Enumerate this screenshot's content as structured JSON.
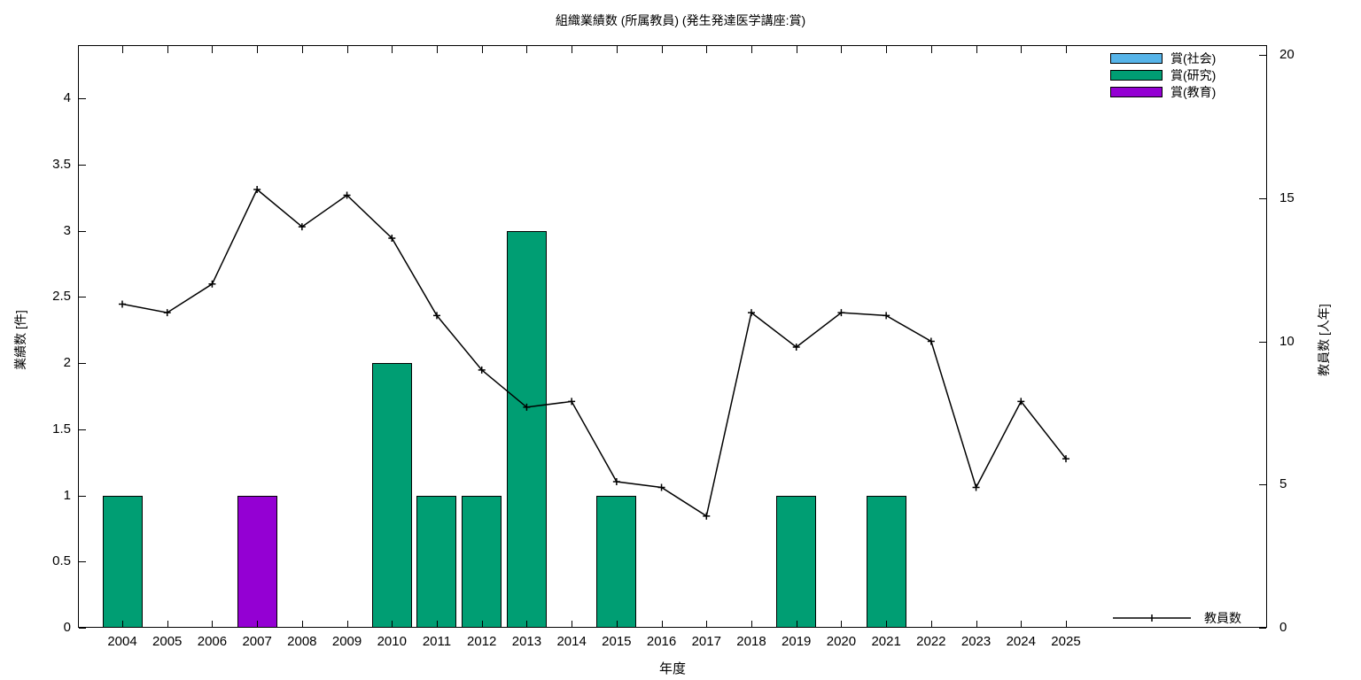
{
  "title": "組織業績数 (所属教員) (発生発達医学講座:賞)",
  "axes": {
    "x": {
      "label": "年度",
      "categories": [
        "2004",
        "2005",
        "2006",
        "2007",
        "2008",
        "2009",
        "2010",
        "2011",
        "2012",
        "2013",
        "2014",
        "2015",
        "2016",
        "2017",
        "2018",
        "2019",
        "2020",
        "2021",
        "2022",
        "2023",
        "2024",
        "2025"
      ]
    },
    "left": {
      "label": "業績数 [件]",
      "tick_labels": [
        "0",
        "0.5",
        "1",
        "1.5",
        "2",
        "2.5",
        "3",
        "3.5",
        "4"
      ],
      "tick_values": [
        0,
        0.5,
        1,
        1.5,
        2,
        2.5,
        3,
        3.5,
        4
      ],
      "range": [
        0,
        4.4
      ]
    },
    "right": {
      "label": "教員数 [人年]",
      "tick_labels": [
        "0",
        "5",
        "10",
        "15",
        "20"
      ],
      "tick_values": [
        0,
        5,
        10,
        15,
        20
      ],
      "range": [
        0,
        20.3
      ]
    }
  },
  "legend": [
    {
      "label": "賞(社会)",
      "color": "#56B4E9"
    },
    {
      "label": "賞(研究)",
      "color": "#009E73"
    },
    {
      "label": "賞(教育)",
      "color": "#9400D3"
    }
  ],
  "line_legend": {
    "label": "教員数",
    "color": "#000000"
  },
  "chart_data": {
    "type": "bar+line",
    "title": "組織業績数 (所属教員) (発生発達医学講座:賞)",
    "xlabel": "年度",
    "ylabel_left": "業績数 [件]",
    "ylabel_right": "教員数 [人年]",
    "ylim_left": [
      0,
      4.4
    ],
    "ylim_right": [
      0,
      20.3
    ],
    "grid": false,
    "legend_position": "top-right",
    "categories": [
      "2004",
      "2005",
      "2006",
      "2007",
      "2008",
      "2009",
      "2010",
      "2011",
      "2012",
      "2013",
      "2014",
      "2015",
      "2016",
      "2017",
      "2018",
      "2019",
      "2020",
      "2021",
      "2022",
      "2023",
      "2024",
      "2025"
    ],
    "series": [
      {
        "name": "賞(社会)",
        "type": "bar",
        "axis": "left",
        "color": "#56B4E9",
        "values": [
          0,
          0,
          0,
          0,
          0,
          0,
          0,
          0,
          0,
          0,
          0,
          0,
          0,
          0,
          0,
          0,
          0,
          0,
          0,
          0,
          0,
          0
        ]
      },
      {
        "name": "賞(研究)",
        "type": "bar",
        "axis": "left",
        "color": "#009E73",
        "values": [
          1,
          0,
          0,
          0,
          0,
          0,
          2,
          1,
          1,
          3,
          0,
          1,
          0,
          0,
          0,
          1,
          0,
          1,
          0,
          0,
          0,
          0
        ]
      },
      {
        "name": "賞(教育)",
        "type": "bar",
        "axis": "left",
        "color": "#9400D3",
        "values": [
          0,
          0,
          0,
          1,
          0,
          0,
          0,
          0,
          0,
          0,
          0,
          0,
          0,
          0,
          0,
          0,
          0,
          0,
          0,
          0,
          0,
          0
        ]
      },
      {
        "name": "教員数",
        "type": "line",
        "axis": "right",
        "color": "#000000",
        "marker": "plus",
        "values": [
          11.3,
          11.0,
          12.0,
          15.3,
          14.0,
          15.1,
          13.6,
          10.9,
          9.0,
          7.7,
          7.9,
          5.1,
          4.9,
          3.9,
          11.0,
          9.8,
          11.0,
          10.9,
          10.0,
          4.9,
          7.9,
          5.9
        ]
      }
    ]
  }
}
